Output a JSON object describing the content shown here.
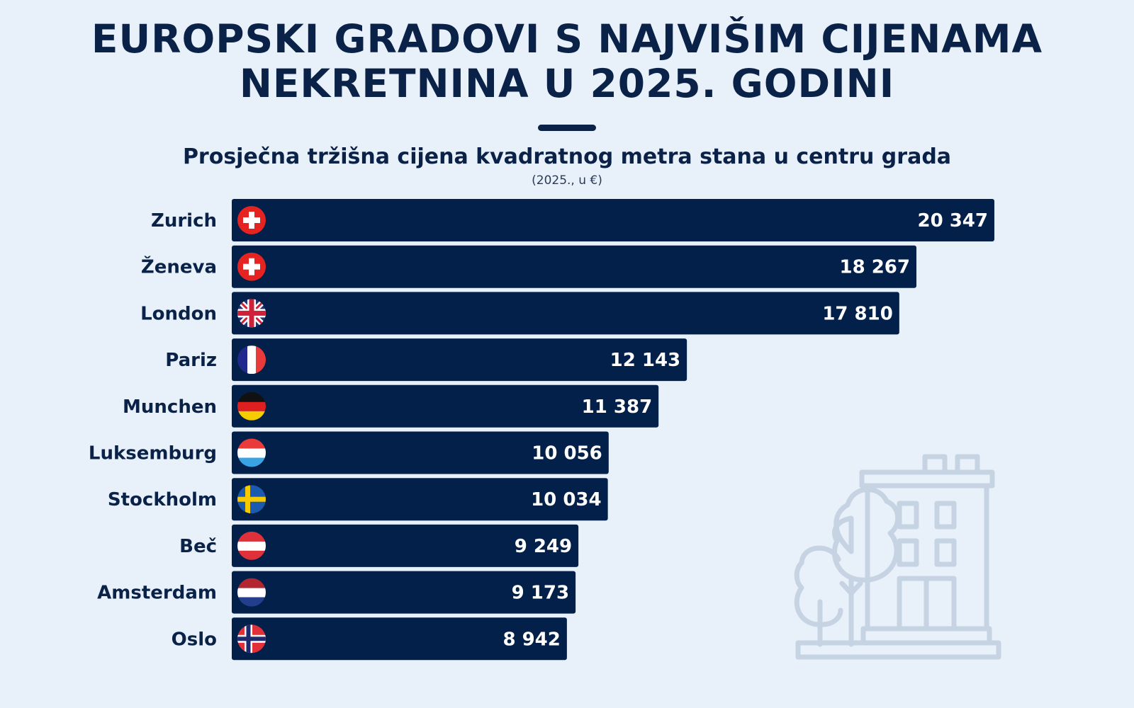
{
  "title_lines": [
    "EUROPSKI GRADOVI S NAJVIŠIM CIJENAMA",
    "NEKRETNINA U 2025. GODINI"
  ],
  "subtitle": "Prosječna tržišna cijena kvadratnog metra stana u centru grada",
  "unit_note": "(2025., u €)",
  "colors": {
    "background": "#e8f0fa",
    "bar": "#03204a",
    "text": "#0b2248",
    "icon": "#c5d3e2"
  },
  "chart_data": {
    "type": "bar",
    "orientation": "horizontal",
    "title": "Prosječna tržišna cijena kvadratnog metra stana u centru grada",
    "ylabel": "",
    "xlabel": "(2025., u €)",
    "xlim": [
      0,
      20347
    ],
    "categories": [
      "Zurich",
      "Ženeva",
      "London",
      "Pariz",
      "Munchen",
      "Luksemburg",
      "Stockholm",
      "Beč",
      "Amsterdam",
      "Oslo"
    ],
    "values": [
      20347,
      18267,
      17810,
      12143,
      11387,
      10056,
      10034,
      9249,
      9173,
      8942
    ],
    "value_labels": [
      "20 347",
      "18 267",
      "17 810",
      "12 143",
      "11 387",
      "10 056",
      "10 034",
      "9 249",
      "9 173",
      "8 942"
    ],
    "flags": [
      "switzerland-flag-icon",
      "switzerland-flag-icon",
      "uk-flag-icon",
      "france-flag-icon",
      "germany-flag-icon",
      "luxembourg-flag-icon",
      "sweden-flag-icon",
      "austria-flag-icon",
      "netherlands-flag-icon",
      "norway-flag-icon"
    ]
  }
}
